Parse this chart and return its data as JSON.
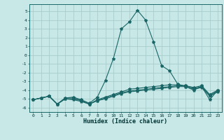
{
  "xlabel": "Humidex (Indice chaleur)",
  "bg_color": "#c8e8e8",
  "grid_color": "#a8cccc",
  "line_color": "#1a6666",
  "xlim": [
    -0.5,
    23.5
  ],
  "ylim": [
    -6.5,
    5.8
  ],
  "xticks": [
    0,
    1,
    2,
    3,
    4,
    5,
    6,
    7,
    8,
    9,
    10,
    11,
    12,
    13,
    14,
    15,
    16,
    17,
    18,
    19,
    20,
    21,
    22,
    23
  ],
  "yticks": [
    -6,
    -5,
    -4,
    -3,
    -2,
    -1,
    0,
    1,
    2,
    3,
    4,
    5
  ],
  "line1_x": [
    0,
    1,
    2,
    3,
    4,
    5,
    6,
    7,
    8,
    9,
    10,
    11,
    12,
    13,
    14,
    15,
    16,
    17,
    18,
    19,
    20,
    21,
    22,
    23
  ],
  "line1_y": [
    -5.1,
    -4.9,
    -4.7,
    -5.6,
    -4.9,
    -4.8,
    -5.1,
    -5.5,
    -4.8,
    -2.9,
    -0.4,
    3.0,
    3.8,
    5.1,
    4.0,
    1.5,
    -1.2,
    -1.8,
    -3.3,
    -3.6,
    -4.0,
    -3.6,
    -5.1,
    -4.0
  ],
  "line2_x": [
    0,
    1,
    2,
    3,
    4,
    5,
    6,
    7,
    8,
    9,
    10,
    11,
    12,
    13,
    14,
    15,
    16,
    17,
    18,
    19,
    20,
    21,
    22,
    23
  ],
  "line2_y": [
    -5.1,
    -4.9,
    -4.7,
    -5.6,
    -4.9,
    -4.9,
    -5.2,
    -5.6,
    -5.1,
    -4.8,
    -4.5,
    -4.2,
    -3.9,
    -3.8,
    -3.7,
    -3.6,
    -3.5,
    -3.4,
    -3.4,
    -3.5,
    -3.7,
    -3.5,
    -4.5,
    -4.0
  ],
  "line3_x": [
    0,
    1,
    2,
    3,
    4,
    5,
    6,
    7,
    8,
    9,
    10,
    11,
    12,
    13,
    14,
    15,
    16,
    17,
    18,
    19,
    20,
    21,
    22,
    23
  ],
  "line3_y": [
    -5.1,
    -4.9,
    -4.7,
    -5.6,
    -5.0,
    -5.0,
    -5.2,
    -5.6,
    -5.2,
    -4.9,
    -4.6,
    -4.3,
    -4.1,
    -4.0,
    -3.9,
    -3.8,
    -3.7,
    -3.6,
    -3.5,
    -3.5,
    -3.8,
    -3.6,
    -4.6,
    -4.1
  ],
  "line4_x": [
    0,
    1,
    2,
    3,
    4,
    5,
    6,
    7,
    8,
    9,
    10,
    11,
    12,
    13,
    14,
    15,
    16,
    17,
    18,
    19,
    20,
    21,
    22,
    23
  ],
  "line4_y": [
    -5.1,
    -4.9,
    -4.7,
    -5.6,
    -5.0,
    -5.1,
    -5.3,
    -5.6,
    -5.2,
    -5.0,
    -4.7,
    -4.4,
    -4.2,
    -4.1,
    -4.0,
    -3.9,
    -3.8,
    -3.7,
    -3.6,
    -3.6,
    -3.9,
    -3.7,
    -4.7,
    -4.2
  ]
}
